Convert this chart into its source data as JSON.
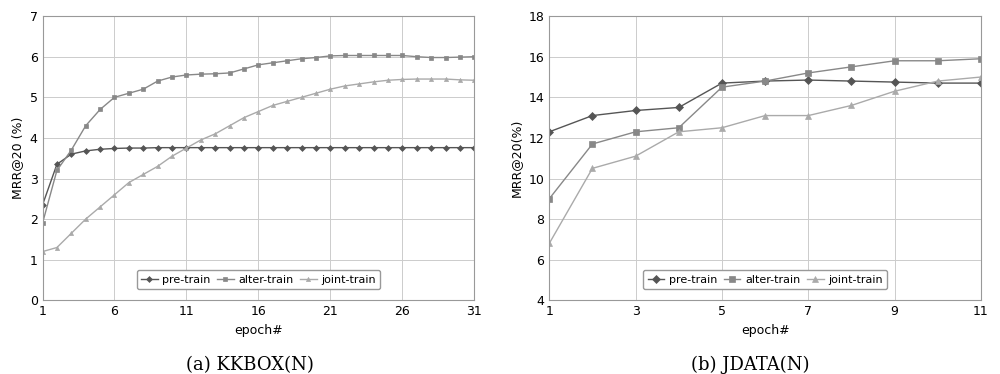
{
  "kkbox": {
    "xlabel": "epoch#",
    "ylabel": "MRR@20 (%)",
    "title": "(a) KKBOX(N)",
    "xlim": [
      1,
      31
    ],
    "ylim": [
      0,
      7
    ],
    "xticks": [
      1,
      6,
      11,
      16,
      21,
      26,
      31
    ],
    "yticks": [
      0,
      1,
      2,
      3,
      4,
      5,
      6,
      7
    ],
    "pre_train": {
      "x": [
        1,
        2,
        3,
        4,
        5,
        6,
        7,
        8,
        9,
        10,
        11,
        12,
        13,
        14,
        15,
        16,
        17,
        18,
        19,
        20,
        21,
        22,
        23,
        24,
        25,
        26,
        27,
        28,
        29,
        30,
        31
      ],
      "y": [
        2.35,
        3.35,
        3.6,
        3.68,
        3.72,
        3.74,
        3.75,
        3.75,
        3.76,
        3.76,
        3.76,
        3.76,
        3.76,
        3.76,
        3.76,
        3.76,
        3.76,
        3.76,
        3.76,
        3.76,
        3.76,
        3.76,
        3.76,
        3.76,
        3.76,
        3.76,
        3.76,
        3.76,
        3.76,
        3.76,
        3.76
      ],
      "color": "#555555",
      "marker": "D",
      "markersize": 3,
      "label": "pre-train"
    },
    "alter_train": {
      "x": [
        1,
        2,
        3,
        4,
        5,
        6,
        7,
        8,
        9,
        10,
        11,
        12,
        13,
        14,
        15,
        16,
        17,
        18,
        19,
        20,
        21,
        22,
        23,
        24,
        25,
        26,
        27,
        28,
        29,
        30,
        31
      ],
      "y": [
        1.9,
        3.2,
        3.7,
        4.3,
        4.7,
        5.0,
        5.1,
        5.2,
        5.4,
        5.5,
        5.55,
        5.57,
        5.58,
        5.6,
        5.7,
        5.8,
        5.85,
        5.9,
        5.95,
        5.98,
        6.02,
        6.03,
        6.03,
        6.03,
        6.03,
        6.03,
        6.0,
        5.98,
        5.98,
        5.99,
        6.0
      ],
      "color": "#888888",
      "marker": "s",
      "markersize": 3,
      "label": "alter-train"
    },
    "joint_train": {
      "x": [
        1,
        2,
        3,
        4,
        5,
        6,
        7,
        8,
        9,
        10,
        11,
        12,
        13,
        14,
        15,
        16,
        17,
        18,
        19,
        20,
        21,
        22,
        23,
        24,
        25,
        26,
        27,
        28,
        29,
        30,
        31
      ],
      "y": [
        1.2,
        1.3,
        1.65,
        2.0,
        2.3,
        2.6,
        2.9,
        3.1,
        3.3,
        3.55,
        3.75,
        3.95,
        4.1,
        4.3,
        4.5,
        4.65,
        4.8,
        4.9,
        5.0,
        5.1,
        5.2,
        5.28,
        5.33,
        5.38,
        5.42,
        5.44,
        5.45,
        5.45,
        5.45,
        5.43,
        5.42
      ],
      "color": "#aaaaaa",
      "marker": "^",
      "markersize": 3,
      "label": "joint-train"
    }
  },
  "jdata": {
    "xlabel": "epoch#",
    "ylabel": "MRR@20(%)",
    "title": "(b) JDATA(N)",
    "xlim": [
      1,
      11
    ],
    "ylim": [
      4,
      18
    ],
    "xticks": [
      1,
      3,
      5,
      7,
      9,
      11
    ],
    "yticks": [
      4,
      6,
      8,
      10,
      12,
      14,
      16,
      18
    ],
    "pre_train": {
      "x": [
        1,
        2,
        3,
        4,
        5,
        6,
        7,
        8,
        9,
        10,
        11
      ],
      "y": [
        12.3,
        13.1,
        13.35,
        13.5,
        14.7,
        14.8,
        14.85,
        14.8,
        14.75,
        14.7,
        14.7
      ],
      "color": "#555555",
      "marker": "D",
      "markersize": 4,
      "label": "pre-train"
    },
    "alter_train": {
      "x": [
        1,
        2,
        3,
        4,
        5,
        6,
        7,
        8,
        9,
        10,
        11
      ],
      "y": [
        9.0,
        11.7,
        12.3,
        12.5,
        14.5,
        14.8,
        15.2,
        15.5,
        15.8,
        15.8,
        15.9
      ],
      "color": "#888888",
      "marker": "s",
      "markersize": 4,
      "label": "alter-train"
    },
    "joint_train": {
      "x": [
        1,
        2,
        3,
        4,
        5,
        6,
        7,
        8,
        9,
        10,
        11
      ],
      "y": [
        6.8,
        10.5,
        11.1,
        12.3,
        12.5,
        13.1,
        13.1,
        13.6,
        14.3,
        14.8,
        15.0
      ],
      "color": "#aaaaaa",
      "marker": "^",
      "markersize": 4,
      "label": "joint-train"
    }
  },
  "background_color": "#ffffff",
  "grid_color": "#cccccc",
  "legend_fontsize": 8,
  "axis_fontsize": 9,
  "title_fontsize": 13,
  "label_fontsize": 9,
  "linewidth": 1.0
}
